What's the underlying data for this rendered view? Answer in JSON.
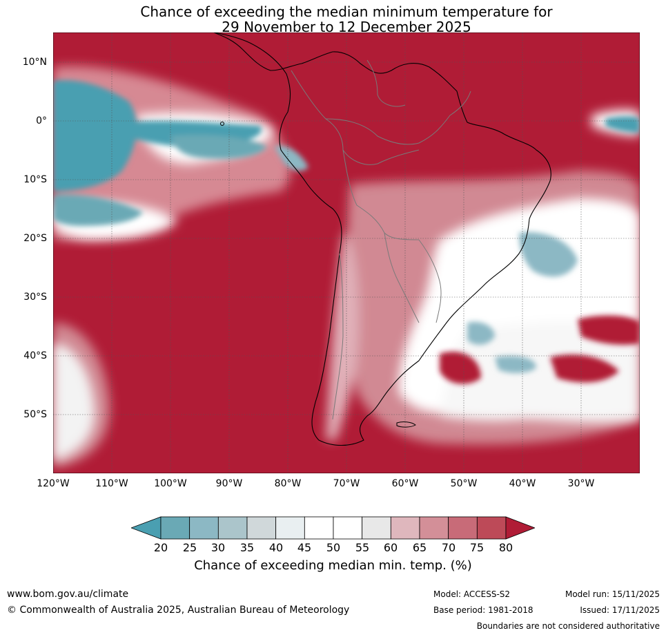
{
  "title": {
    "line1": "Chance of exceeding the median minimum temperature for",
    "line2": "29 November to 12 December 2025"
  },
  "map": {
    "y_ticks": [
      {
        "label": "10°N",
        "lat": 10
      },
      {
        "label": "0°",
        "lat": 0
      },
      {
        "label": "10°S",
        "lat": -10
      },
      {
        "label": "20°S",
        "lat": -20
      },
      {
        "label": "30°S",
        "lat": -30
      },
      {
        "label": "40°S",
        "lat": -40
      },
      {
        "label": "50°S",
        "lat": -50
      }
    ],
    "x_ticks": [
      {
        "label": "120°W",
        "lon": -120
      },
      {
        "label": "110°W",
        "lon": -110
      },
      {
        "label": "100°W",
        "lon": -100
      },
      {
        "label": "90°W",
        "lon": -90
      },
      {
        "label": "80°W",
        "lon": -80
      },
      {
        "label": "70°W",
        "lon": -70
      },
      {
        "label": "60°W",
        "lon": -60
      },
      {
        "label": "50°W",
        "lon": -50
      },
      {
        "label": "40°W",
        "lon": -40
      },
      {
        "label": "30°W",
        "lon": -30
      }
    ],
    "lon_range": [
      -120,
      -20
    ],
    "lat_range": [
      -60,
      15
    ],
    "ocean_color": "#b01c36",
    "grid_color": "#555555"
  },
  "colorbar": {
    "title": "Chance of exceeding median min. temp. (%)",
    "labels": [
      "20",
      "25",
      "30",
      "35",
      "40",
      "45",
      "50",
      "55",
      "60",
      "65",
      "70",
      "75",
      "80"
    ],
    "colors": [
      "#6aa9b5",
      "#8cb8c4",
      "#abc5cb",
      "#d0d8da",
      "#e9eff1",
      "#ffffff",
      "#ffffff",
      "#e8e8e8",
      "#dfb7bd",
      "#d38f98",
      "#c86b78",
      "#bd4a58"
    ],
    "under_color": "#4a9fb1",
    "over_color": "#b01c36"
  },
  "footer": {
    "website": "www.bom.gov.au/climate",
    "copyright": "© Commonwealth of Australia 2025, Australian Bureau of Meteorology",
    "model": "Model: ACCESS-S2",
    "base_period": "Base period: 1981-2018",
    "model_run": "Model run: 15/11/2025",
    "issued": "Issued: 17/11/2025",
    "disclaimer": "Boundaries are not considered authoritative"
  }
}
